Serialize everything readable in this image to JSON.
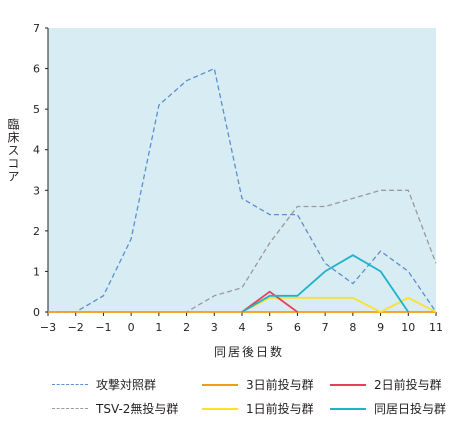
{
  "chart_data": {
    "type": "line",
    "xlabel": "同居後日数",
    "ylabel": "臨床スコア",
    "xlim": [
      -3,
      11
    ],
    "ylim": [
      0,
      7
    ],
    "x_ticks": [
      "−3",
      "−2",
      "−1",
      "0",
      "1",
      "2",
      "3",
      "4",
      "5",
      "6",
      "7",
      "8",
      "9",
      "10",
      "11"
    ],
    "y_ticks": [
      "0",
      "1",
      "2",
      "3",
      "4",
      "5",
      "6",
      "7"
    ],
    "grid": false,
    "legend_position": "bottom",
    "plot_background": "#d8ecf3",
    "series": [
      {
        "name": "攻撃対照群",
        "color": "#5b8fcf",
        "dash": true,
        "x": [
          -3,
          -2,
          -1,
          0,
          1,
          2,
          3,
          4,
          5,
          6,
          7,
          8,
          9,
          10,
          11
        ],
        "y": [
          0,
          0,
          0.4,
          1.8,
          5.1,
          5.7,
          6.0,
          2.8,
          2.4,
          2.4,
          1.2,
          0.7,
          1.5,
          1.0,
          0
        ]
      },
      {
        "name": "TSV-2無投与群",
        "color": "#9a9a9a",
        "dash": true,
        "x": [
          -3,
          -2,
          -1,
          0,
          1,
          2,
          3,
          4,
          5,
          6,
          7,
          8,
          9,
          10,
          11
        ],
        "y": [
          0,
          0,
          0,
          0,
          0,
          0,
          0.4,
          0.6,
          1.7,
          2.6,
          2.6,
          2.8,
          3.0,
          3.0,
          1.2
        ]
      },
      {
        "name": "3日前投与群",
        "color": "#f39c12",
        "dash": false,
        "x": [
          -3,
          -2,
          -1,
          0,
          1,
          2,
          3,
          4,
          5,
          6,
          7,
          8,
          9,
          10,
          11
        ],
        "y": [
          0,
          0,
          0,
          0,
          0,
          0,
          0,
          0,
          0,
          0,
          0,
          0,
          0,
          0,
          0
        ]
      },
      {
        "name": "1日前投与群",
        "color": "#f9e22a",
        "dash": false,
        "x": [
          4,
          5,
          6,
          7,
          8,
          9,
          10,
          11
        ],
        "y": [
          0,
          0.35,
          0.35,
          0.35,
          0.35,
          0,
          0.35,
          0
        ]
      },
      {
        "name": "2日前投与群",
        "color": "#e8405b",
        "dash": false,
        "x": [
          4,
          5,
          6
        ],
        "y": [
          0,
          0.5,
          0
        ]
      },
      {
        "name": "同居日投与群",
        "color": "#1eb3c9",
        "dash": false,
        "x": [
          4,
          5,
          6,
          7,
          8,
          9,
          10
        ],
        "y": [
          0,
          0.4,
          0.4,
          1.0,
          1.4,
          1.0,
          0
        ]
      }
    ]
  },
  "legend_order": [
    "攻撃対照群",
    "3日前投与群",
    "2日前投与群",
    "TSV-2無投与群",
    "1日前投与群",
    "同居日投与群"
  ]
}
